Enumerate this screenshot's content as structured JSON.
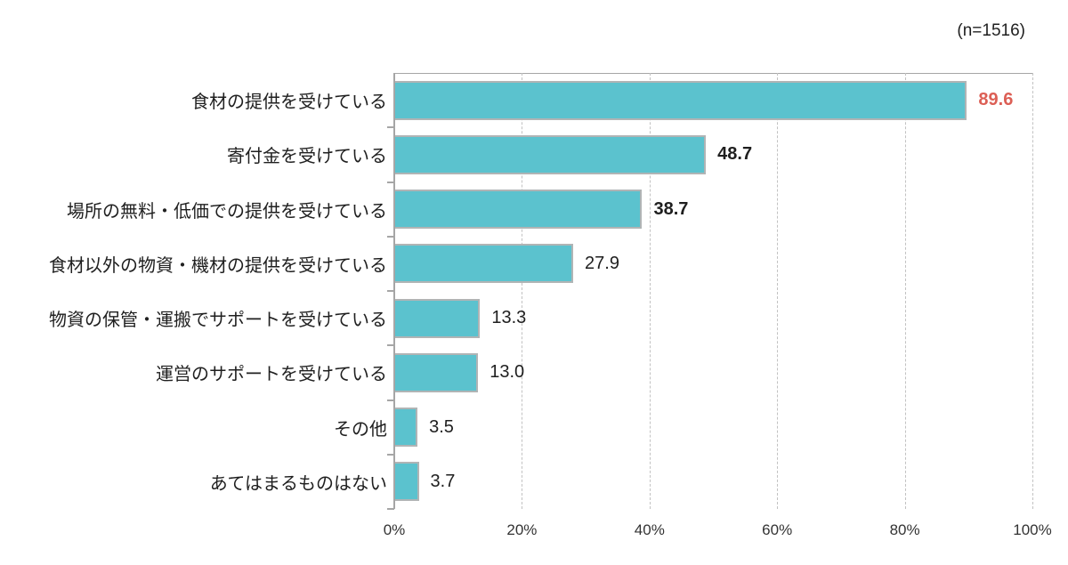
{
  "header": {
    "sample_label": "(n=1516)"
  },
  "chart_data": {
    "type": "bar",
    "orientation": "horizontal",
    "title": "",
    "xlabel": "",
    "ylabel": "",
    "categories": [
      "食材の提供を受けている",
      "寄付金を受けている",
      "場所の無料・低価での提供を受けている",
      "食材以外の物資・機材の提供を受けている",
      "物資の保管・運搬でサポートを受けている",
      "運営のサポートを受けている",
      "その他",
      "あてはまるものはない"
    ],
    "values": [
      89.6,
      48.7,
      38.7,
      27.9,
      13.3,
      13.0,
      3.5,
      3.7
    ],
    "value_labels": [
      "89.6",
      "48.7",
      "38.7",
      "27.9",
      "13.3",
      "13.0",
      "3.5",
      "3.7"
    ],
    "emphasis": {
      "bold_indices": [
        0,
        1,
        2
      ],
      "highlight_index": 0,
      "highlight_color": "#dc5f55"
    },
    "xlim": [
      0,
      100
    ],
    "x_ticks": [
      0,
      20,
      40,
      60,
      80,
      100
    ],
    "x_tick_labels": [
      "0%",
      "20%",
      "40%",
      "60%",
      "80%",
      "100%"
    ],
    "grid": "vertical-dashed",
    "legend": "none",
    "colors": {
      "bar_fill": "#5bc2ce",
      "bar_border": "#b0b4b5",
      "gridline": "#c2c2c2",
      "axis": "#a6a6a6",
      "text": "#1f1f1f"
    }
  }
}
